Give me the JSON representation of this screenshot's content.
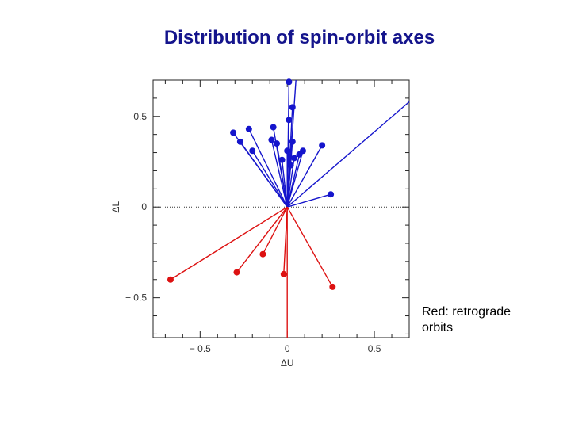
{
  "slide": {
    "title": "Distribution of spin-orbit axes"
  },
  "annotation": {
    "line1": "Red: retrograde",
    "line2": "orbits"
  },
  "colors": {
    "prograde": "#1515cc",
    "retrograde": "#dd1111",
    "frame": "#222222",
    "zero_line": "#333333"
  },
  "chart_data": {
    "type": "scatter",
    "title": "",
    "xlabel": "ΔU",
    "ylabel": "ΔL",
    "xlim": [
      -0.77,
      0.7
    ],
    "ylim": [
      -0.72,
      0.7
    ],
    "grid": false,
    "x_ticks": [
      {
        "value": -0.5,
        "label": "− 0.5"
      },
      {
        "value": 0,
        "label": "0"
      },
      {
        "value": 0.5,
        "label": "0.5"
      }
    ],
    "y_ticks": [
      {
        "value": 0.5,
        "label": "0.5"
      },
      {
        "value": 0,
        "label": "0"
      },
      {
        "value": -0.5,
        "label": "− 0.5"
      }
    ],
    "origin": [
      0,
      0
    ],
    "series": [
      {
        "name": "",
        "color_key": "prograde",
        "points": [
          {
            "x": 0.01,
            "y": 0.69
          },
          {
            "x": 0.03,
            "y": 0.55
          },
          {
            "x": 0.01,
            "y": 0.48
          },
          {
            "x": -0.08,
            "y": 0.44
          },
          {
            "x": -0.22,
            "y": 0.43
          },
          {
            "x": -0.31,
            "y": 0.41
          },
          {
            "x": -0.27,
            "y": 0.36
          },
          {
            "x": -0.09,
            "y": 0.37
          },
          {
            "x": -0.06,
            "y": 0.35
          },
          {
            "x": 0.03,
            "y": 0.36
          },
          {
            "x": 0.0,
            "y": 0.31
          },
          {
            "x": -0.2,
            "y": 0.31
          },
          {
            "x": 0.07,
            "y": 0.29
          },
          {
            "x": 0.09,
            "y": 0.31
          },
          {
            "x": 0.04,
            "y": 0.27
          },
          {
            "x": -0.03,
            "y": 0.26
          },
          {
            "x": 0.02,
            "y": 0.23
          },
          {
            "x": 0.2,
            "y": 0.34
          },
          {
            "x": 0.25,
            "y": 0.07
          }
        ],
        "rays": [
          {
            "x": 0.7,
            "y": 0.58
          },
          {
            "x": 0.05,
            "y": 0.7
          }
        ]
      },
      {
        "name": "",
        "color_key": "retrograde",
        "points": [
          {
            "x": -0.67,
            "y": -0.4
          },
          {
            "x": -0.29,
            "y": -0.36
          },
          {
            "x": -0.14,
            "y": -0.26
          },
          {
            "x": -0.02,
            "y": -0.37
          },
          {
            "x": 0.26,
            "y": -0.44
          }
        ],
        "rays": [
          {
            "x": 0.0,
            "y": -0.72
          }
        ]
      }
    ]
  }
}
